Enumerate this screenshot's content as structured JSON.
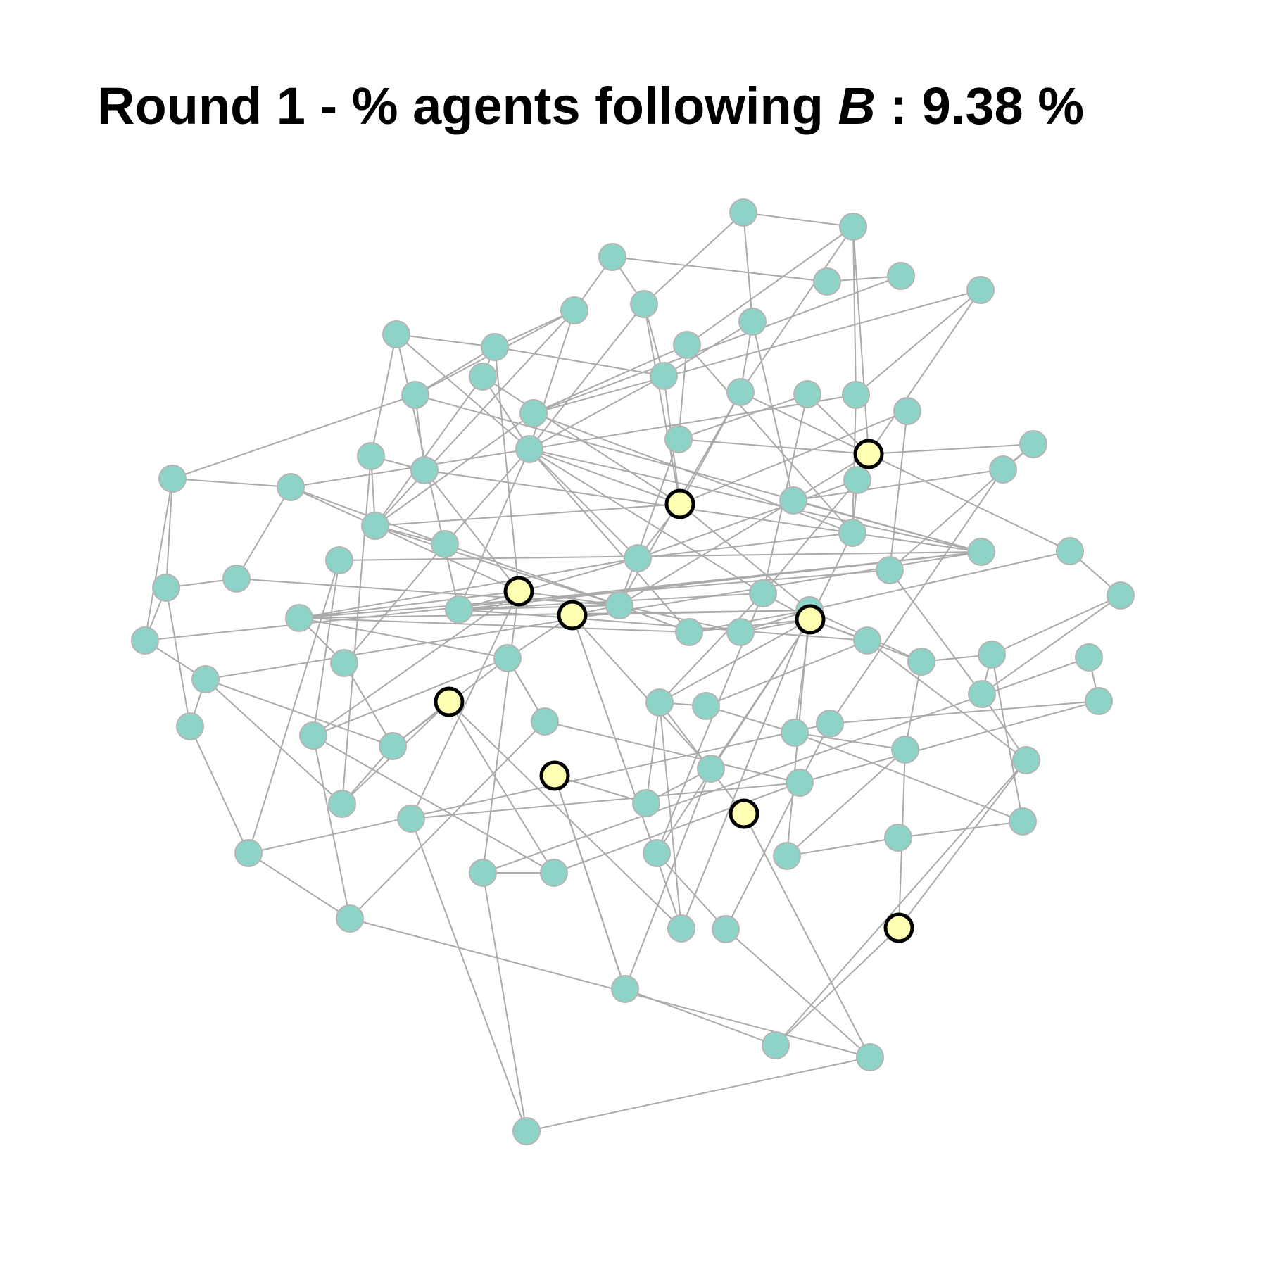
{
  "title": {
    "prefix": "Round 1 - % agents following ",
    "variable": "B",
    "suffix": " : 9.38 %"
  },
  "colors": {
    "node_a_fill": "#8ed3c7",
    "node_b_fill": "#ffffb3",
    "edge": "#aaaaaa"
  },
  "legend": "none"
}
